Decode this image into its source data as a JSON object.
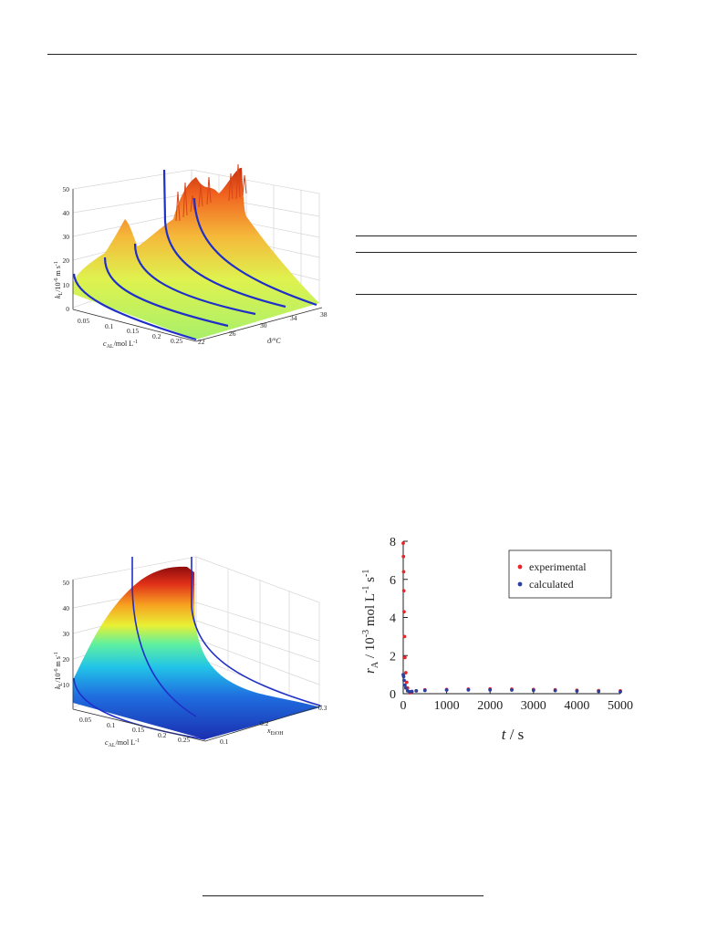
{
  "fig1": {
    "y_label_main": "k",
    "y_label_sub": "L",
    "y_label_unit": "/10",
    "y_label_exp": "-6",
    "y_label_unit2": " m s",
    "y_label_exp2": "-1",
    "y_ticks": [
      "0",
      "10",
      "20",
      "30",
      "40",
      "50"
    ],
    "x_label_main": "c",
    "x_label_sub": "AL",
    "x_label_unit": "/mol L",
    "x_label_exp": "-1",
    "x_ticks": [
      "0.05",
      "0.1",
      "0.15",
      "0.2",
      "0.25"
    ],
    "z_label": "ϑ/°C",
    "z_ticks": [
      "22",
      "26",
      "30",
      "34",
      "38"
    ]
  },
  "fig2": {
    "y_label_main": "k",
    "y_label_sub": "L",
    "y_label_unit": "/10",
    "y_label_exp": "-6",
    "y_label_unit2": " m s",
    "y_label_exp2": "-1",
    "y_ticks": [
      "10",
      "20",
      "30",
      "40",
      "50"
    ],
    "x_label_main": "c",
    "x_label_sub": "AL",
    "x_label_unit": "/mol L",
    "x_label_exp": "-1",
    "x_ticks": [
      "0.05",
      "0.1",
      "0.15",
      "0.2",
      "0.25"
    ],
    "z_label_main": "x",
    "z_label_sub": "EtOH",
    "z_ticks": [
      "0.1",
      "0.2",
      "0.3"
    ]
  },
  "chart_data": [
    {
      "type": "scatter",
      "xlabel": "t / s",
      "ylabel": "r_A / 10^-3 mol L^-1 s^-1",
      "xlim": [
        0,
        5000
      ],
      "ylim": [
        0,
        8
      ],
      "x_ticks": [
        "0",
        "1000",
        "2000",
        "3000",
        "4000",
        "5000"
      ],
      "y_ticks": [
        "0",
        "2",
        "4",
        "6",
        "8"
      ],
      "legend_position": "top-right",
      "series": [
        {
          "name": "experimental",
          "color": "#e8262a",
          "x": [
            0,
            5,
            10,
            15,
            20,
            30,
            40,
            60,
            80,
            100,
            150,
            200,
            300,
            500,
            1000,
            1500,
            2000,
            2500,
            3000,
            3500,
            4000,
            4500,
            5000
          ],
          "y": [
            7.9,
            7.2,
            6.4,
            5.4,
            4.3,
            3.0,
            1.9,
            1.1,
            0.6,
            0.3,
            0.05,
            0.1,
            0.15,
            0.2,
            0.22,
            0.24,
            0.25,
            0.24,
            0.22,
            0.2,
            0.18,
            0.16,
            0.15
          ]
        },
        {
          "name": "calculated",
          "color": "#2b3f9e",
          "x": [
            0,
            10,
            20,
            40,
            60,
            100,
            150,
            200,
            300,
            500,
            1000,
            1500,
            2000,
            2500,
            3000,
            3500,
            4000,
            4500,
            5000
          ],
          "y": [
            1.0,
            0.9,
            0.7,
            0.45,
            0.3,
            0.15,
            0.1,
            0.12,
            0.15,
            0.17,
            0.19,
            0.2,
            0.2,
            0.19,
            0.18,
            0.16,
            0.14,
            0.12,
            0.1
          ]
        }
      ]
    }
  ]
}
